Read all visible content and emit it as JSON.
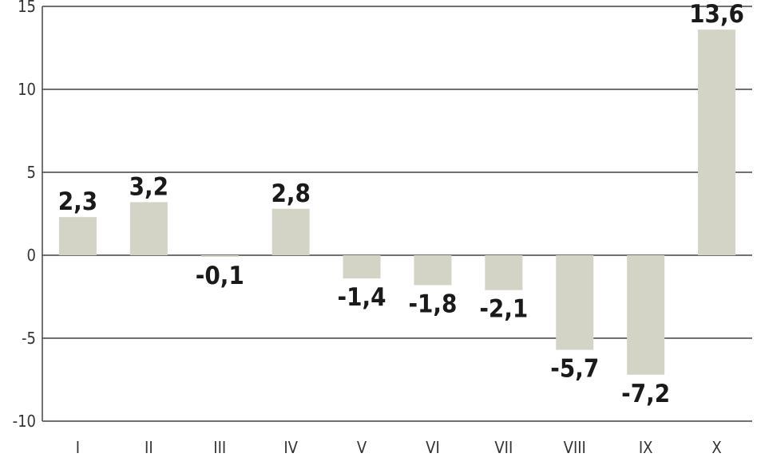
{
  "chart_data": {
    "type": "bar",
    "title": "",
    "xlabel": "",
    "ylabel": "",
    "categories": [
      "I",
      "II",
      "III",
      "IV",
      "V",
      "VI",
      "VII",
      "VIII",
      "IX",
      "X"
    ],
    "values": [
      2.3,
      3.2,
      -0.1,
      2.8,
      -1.4,
      -1.8,
      -2.1,
      -5.7,
      -7.2,
      13.6
    ],
    "value_labels": [
      "2,3",
      "3,2",
      "-0,1",
      "2,8",
      "-1,4",
      "-1,8",
      "-2,1",
      "-5,7",
      "-7,2",
      "13,6"
    ],
    "ylim": [
      -10,
      15
    ],
    "yticks": [
      15,
      10,
      5,
      0,
      -5,
      -10
    ],
    "ytick_labels": [
      "15",
      "10",
      "5",
      "0",
      "-5",
      "-10"
    ],
    "grid": true,
    "legend": "none",
    "colors": {
      "bar": "#d4d4c6",
      "grid": "#444444",
      "text": "#1a1a1a"
    }
  }
}
